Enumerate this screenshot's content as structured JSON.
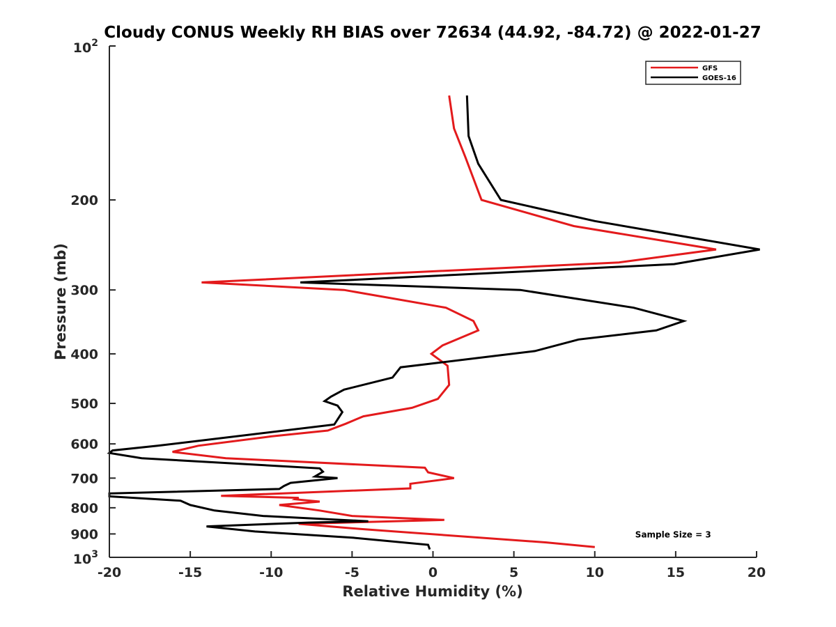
{
  "chart_data": {
    "type": "line",
    "title": "Cloudy CONUS Weekly RH BIAS over 72634 (44.92, -84.72) @ 2022-01-27",
    "xlabel": "Relative Humidity (%)",
    "ylabel": "Pressure (mb)",
    "xlim": [
      -20,
      20
    ],
    "ylim": [
      100,
      1000
    ],
    "y_scale": "log",
    "y_reversed": true,
    "grid": false,
    "legend_placement": "top-right",
    "x_ticks": [
      "-20",
      "-15",
      "-10",
      "-5",
      "0",
      "5",
      "10",
      "15",
      "20"
    ],
    "y_ticks": [
      {
        "value": 100,
        "base": "10",
        "exp": "2"
      },
      {
        "value": 200,
        "label": "200"
      },
      {
        "value": 300,
        "label": "300"
      },
      {
        "value": 400,
        "label": "400"
      },
      {
        "value": 500,
        "label": "500"
      },
      {
        "value": 600,
        "label": "600"
      },
      {
        "value": 700,
        "label": "700"
      },
      {
        "value": 800,
        "label": "800"
      },
      {
        "value": 900,
        "label": "900"
      },
      {
        "value": 1000,
        "base": "10",
        "exp": "3"
      }
    ],
    "series": [
      {
        "name": "GFS",
        "color": "#e31a1c",
        "points": [
          [
            1.0,
            125
          ],
          [
            1.3,
            145
          ],
          [
            2.0,
            165
          ],
          [
            3.0,
            200
          ],
          [
            8.7,
            225
          ],
          [
            17.5,
            250
          ],
          [
            11.5,
            265
          ],
          [
            -14.3,
            290
          ],
          [
            -5.5,
            300
          ],
          [
            0.8,
            325
          ],
          [
            2.5,
            345
          ],
          [
            2.8,
            360
          ],
          [
            0.6,
            385
          ],
          [
            -0.1,
            400
          ],
          [
            0.9,
            422
          ],
          [
            1.0,
            460
          ],
          [
            0.3,
            490
          ],
          [
            -1.3,
            510
          ],
          [
            -4.3,
            530
          ],
          [
            -5.4,
            548
          ],
          [
            -6.5,
            565
          ],
          [
            -10.0,
            580
          ],
          [
            -14.5,
            605
          ],
          [
            -16.1,
            622
          ],
          [
            -12.8,
            640
          ],
          [
            -0.5,
            668
          ],
          [
            -0.3,
            682
          ],
          [
            1.3,
            700
          ],
          [
            -1.4,
            718
          ],
          [
            -1.4,
            733
          ],
          [
            -13.1,
            758
          ],
          [
            -8.3,
            765
          ],
          [
            -8.5,
            770
          ],
          [
            -7.0,
            778
          ],
          [
            -9.5,
            790
          ],
          [
            -7.0,
            810
          ],
          [
            -5.0,
            830
          ],
          [
            0.7,
            845
          ],
          [
            -8.3,
            860
          ],
          [
            -4.5,
            880
          ],
          [
            7.0,
            935
          ],
          [
            10.0,
            955
          ]
        ]
      },
      {
        "name": "GOES-16",
        "color": "#000000",
        "points": [
          [
            2.1,
            125
          ],
          [
            2.2,
            150
          ],
          [
            2.8,
            170
          ],
          [
            4.2,
            200
          ],
          [
            10.0,
            220
          ],
          [
            20.2,
            250
          ],
          [
            14.9,
            267
          ],
          [
            -8.2,
            290
          ],
          [
            5.4,
            300
          ],
          [
            12.4,
            325
          ],
          [
            15.5,
            345
          ],
          [
            13.8,
            360
          ],
          [
            9.0,
            375
          ],
          [
            6.3,
            395
          ],
          [
            -2.0,
            425
          ],
          [
            -2.5,
            445
          ],
          [
            -5.5,
            470
          ],
          [
            -6.3,
            485
          ],
          [
            -6.7,
            495
          ],
          [
            -5.9,
            505
          ],
          [
            -5.6,
            520
          ],
          [
            -6.1,
            550
          ],
          [
            -17.0,
            605
          ],
          [
            -19.8,
            618
          ],
          [
            -20.0,
            625
          ],
          [
            -18.0,
            640
          ],
          [
            -7.0,
            670
          ],
          [
            -6.8,
            680
          ],
          [
            -7.3,
            695
          ],
          [
            -5.9,
            700
          ],
          [
            -8.8,
            715
          ],
          [
            -9.2,
            725
          ],
          [
            -9.5,
            735
          ],
          [
            -20.0,
            750
          ],
          [
            -20.0,
            760
          ],
          [
            -15.6,
            775
          ],
          [
            -15.0,
            790
          ],
          [
            -13.5,
            810
          ],
          [
            -10.5,
            830
          ],
          [
            -4.0,
            850
          ],
          [
            -7.7,
            855
          ],
          [
            -14.0,
            870
          ],
          [
            -11.0,
            890
          ],
          [
            -5.0,
            915
          ],
          [
            -0.3,
            945
          ],
          [
            -0.2,
            965
          ]
        ]
      }
    ],
    "annotations": [
      {
        "text": "Sample Size = 3",
        "x": 12.5,
        "y": 900
      }
    ]
  }
}
